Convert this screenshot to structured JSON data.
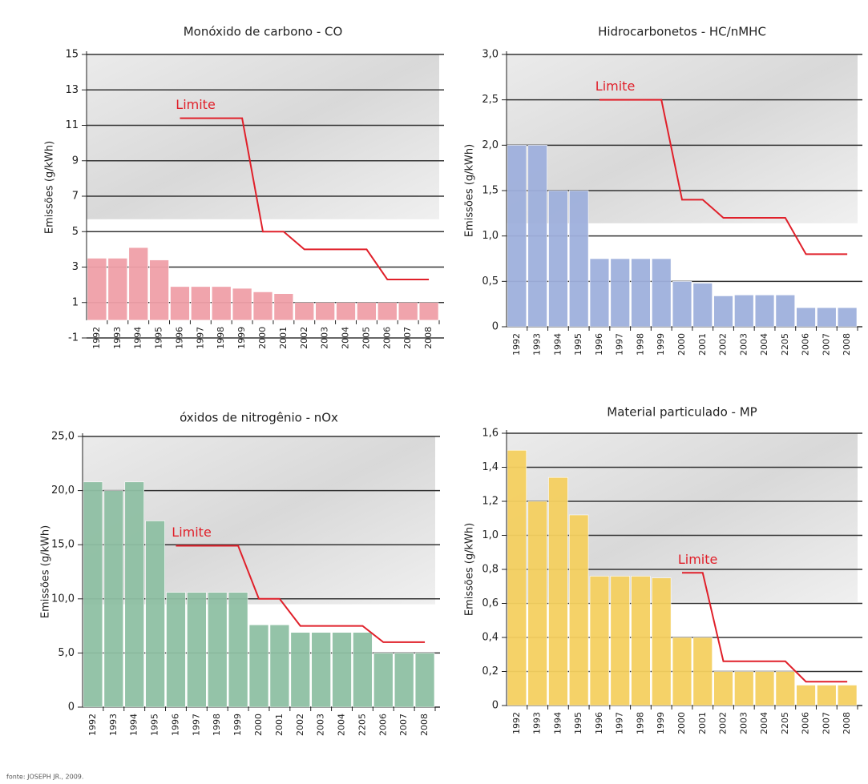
{
  "chart_data": [
    {
      "type": "bar",
      "title": "Monóxido de carbono - CO",
      "y_label": "Emissões (g/kWh)",
      "categories": [
        "1992",
        "1993",
        "1994",
        "1995",
        "1996",
        "1997",
        "1998",
        "1999",
        "2000",
        "2001",
        "2002",
        "2003",
        "2004",
        "2005",
        "2006",
        "2007",
        "2008"
      ],
      "ylim": [
        -1,
        15
      ],
      "yticks": [
        -1,
        1,
        3,
        5,
        7,
        9,
        11,
        13,
        15
      ],
      "grid": true,
      "series": [
        {
          "type": "bar",
          "color": "#f0a0a8",
          "values": [
            3.5,
            3.5,
            4.1,
            3.4,
            1.9,
            1.9,
            1.9,
            1.8,
            1.6,
            1.5,
            1.0,
            1.0,
            1.0,
            1.0,
            1.0,
            1.0,
            1.0
          ]
        },
        {
          "type": "line",
          "name": "Limite",
          "color": "#e0202a",
          "values": [
            null,
            null,
            null,
            null,
            11.4,
            11.4,
            11.4,
            11.4,
            5.0,
            5.0,
            4.0,
            4.0,
            4.0,
            4.0,
            2.3,
            2.3,
            2.3
          ]
        }
      ]
    },
    {
      "type": "bar",
      "title": "Hidrocarbonetos - HC/nMHC",
      "y_label": "Emissões (g/kWh)",
      "categories": [
        "1992",
        "1993",
        "1994",
        "1995",
        "1996",
        "1997",
        "1998",
        "1999",
        "2000",
        "2001",
        "2002",
        "2003",
        "2004",
        "2205",
        "2006",
        "2007",
        "2008"
      ],
      "ylim": [
        0,
        3
      ],
      "yticks": [
        0,
        {
          "value": 0.5,
          "label": "0,5"
        },
        {
          "value": 1,
          "label": "1,0"
        },
        {
          "value": 1.5,
          "label": "1,5"
        },
        {
          "value": 2,
          "label": "2,0"
        },
        {
          "value": 2.5,
          "label": "2,5"
        },
        {
          "value": 3,
          "label": "3,0"
        }
      ],
      "grid": true,
      "series": [
        {
          "type": "bar",
          "color": "#9fb0dd",
          "values": [
            2.0,
            2.0,
            1.5,
            1.5,
            0.75,
            0.75,
            0.75,
            0.75,
            0.5,
            0.48,
            0.34,
            0.35,
            0.35,
            0.35,
            0.21,
            0.21,
            0.21
          ]
        },
        {
          "type": "line",
          "name": "Limite",
          "color": "#e0202a",
          "values": [
            null,
            null,
            null,
            null,
            2.5,
            2.5,
            2.5,
            2.5,
            1.4,
            1.4,
            1.2,
            1.2,
            1.2,
            1.2,
            0.8,
            0.8,
            0.8
          ]
        }
      ]
    },
    {
      "type": "bar",
      "title": "óxidos de nitrogênio - nOx",
      "y_label": "Emissões (g/kWh)",
      "categories": [
        "1992",
        "1993",
        "1994",
        "1995",
        "1996",
        "1997",
        "1998",
        "1999",
        "2000",
        "2001",
        "2002",
        "2003",
        "2004",
        "2205",
        "2006",
        "2007",
        "2008"
      ],
      "ylim": [
        0,
        25
      ],
      "yticks": [
        0,
        {
          "value": 5,
          "label": "5,0"
        },
        {
          "value": 10,
          "label": "10,0"
        },
        {
          "value": 15,
          "label": "15,0"
        },
        {
          "value": 20,
          "label": "20,0"
        },
        {
          "value": 25,
          "label": "25,0"
        }
      ],
      "grid": true,
      "series": [
        {
          "type": "bar",
          "color": "#8fc0a4",
          "values": [
            20.8,
            20.0,
            20.8,
            17.2,
            10.6,
            10.6,
            10.6,
            10.6,
            7.6,
            7.6,
            6.9,
            6.9,
            6.9,
            6.9,
            5.0,
            5.0,
            5.0
          ]
        },
        {
          "type": "line",
          "name": "Limite",
          "color": "#e0202a",
          "values": [
            null,
            null,
            null,
            null,
            14.9,
            14.9,
            14.9,
            14.9,
            10.0,
            10.0,
            7.5,
            7.5,
            7.5,
            7.5,
            6.0,
            6.0,
            6.0
          ]
        }
      ]
    },
    {
      "type": "bar",
      "title": "Material particulado - MP",
      "y_label": "Emissões (g/kWh)",
      "categories": [
        "1992",
        "1993",
        "1994",
        "1995",
        "1996",
        "1997",
        "1998",
        "1999",
        "2000",
        "2001",
        "2002",
        "2003",
        "2004",
        "2205",
        "2006",
        "2007",
        "2008"
      ],
      "ylim": [
        0,
        1.6
      ],
      "yticks": [
        0,
        {
          "value": 0.2,
          "label": "0,2"
        },
        {
          "value": 0.4,
          "label": "0,4"
        },
        {
          "value": 0.6,
          "label": "0,6"
        },
        {
          "value": 0.8,
          "label": "0,8"
        },
        {
          "value": 1,
          "label": "1,0"
        },
        {
          "value": 1.2,
          "label": "1,2"
        },
        {
          "value": 1.4,
          "label": "1,4"
        },
        {
          "value": 1.6,
          "label": "1,6"
        }
      ],
      "grid": true,
      "series": [
        {
          "type": "bar",
          "color": "#f5d060",
          "values": [
            1.5,
            1.2,
            1.34,
            1.12,
            0.76,
            0.76,
            0.76,
            0.75,
            0.4,
            0.4,
            0.2,
            0.2,
            0.2,
            0.2,
            0.12,
            0.12,
            0.12
          ]
        },
        {
          "type": "line",
          "name": "Limite",
          "color": "#e0202a",
          "values": [
            null,
            null,
            null,
            null,
            null,
            null,
            null,
            null,
            0.78,
            0.78,
            0.26,
            0.26,
            0.26,
            0.26,
            0.14,
            0.14,
            0.14
          ]
        }
      ]
    }
  ],
  "source": "fonte: JOSEPH JR., 2009."
}
